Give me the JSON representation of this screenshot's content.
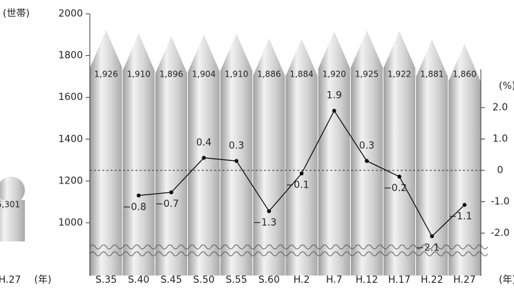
{
  "chart_data": {
    "type": "pencil-bar-line",
    "y_label": "(世帯)",
    "y2_label": "(%)",
    "x_label": "(年)",
    "categories": [
      "S.35",
      "S.40",
      "S.45",
      "S.50",
      "S.55",
      "S.60",
      "H.2",
      "H.7",
      "H.12",
      "H.17",
      "H.22",
      "H.27"
    ],
    "series": [
      {
        "color": "#c8c8c8",
        "values": [
          1926,
          1910,
          1896,
          1904,
          1910,
          1886,
          1884,
          1920,
          1925,
          1922,
          1881,
          1860
        ],
        "value_labels": [
          "1,926",
          "1,910",
          "1,896",
          "1,904",
          "1,910",
          "1,886",
          "1,884",
          "1,920",
          "1,925",
          "1,922",
          "1,881",
          "1,860"
        ]
      },
      {
        "axis": "y2",
        "color": "#000000",
        "values": [
          null,
          -0.8,
          -0.7,
          0.4,
          0.3,
          -1.3,
          -0.1,
          1.9,
          0.3,
          -0.2,
          -2.1,
          -1.1
        ],
        "value_labels": [
          null,
          "−0.8",
          "−0.7",
          "0.4",
          "0.3",
          "−1.3",
          "−0.1",
          "1.9",
          "0.3",
          "−0.2",
          "−2.1",
          "−1.1"
        ]
      }
    ],
    "ylim": [
      1000,
      2000
    ],
    "yticks": [
      1000,
      1200,
      1400,
      1600,
      1800,
      2000
    ],
    "y2lim": [
      -3,
      3
    ],
    "y2ticks": [
      {
        "value": -2,
        "label": "-2.0"
      },
      {
        "value": -1,
        "label": "-1.0"
      },
      0,
      {
        "value": 1,
        "label": "1.0"
      },
      {
        "value": 2,
        "label": "2.0"
      }
    ],
    "zero_line": true
  },
  "fragment": {
    "value_label": "5,301",
    "category": "H.27",
    "x_label": "(年)"
  }
}
